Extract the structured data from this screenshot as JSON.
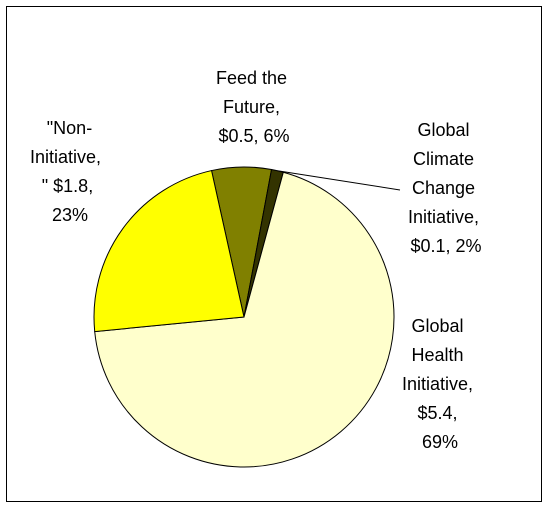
{
  "chart_data": {
    "type": "pie",
    "title": "",
    "slices": [
      {
        "name": "Global Health Initiative",
        "value": 5.4,
        "percent": 69,
        "color": "#FFFFCC",
        "label_lines": [
          "Global",
          "Health",
          "Initiative,",
          "$5.4,",
          "69%"
        ]
      },
      {
        "name": "\"Non-Initiative,\"",
        "value": 1.8,
        "percent": 23,
        "color": "#FFFF00",
        "label_lines": [
          "\"Non-",
          "Initiative,",
          "\"  $1.8,",
          "23%"
        ]
      },
      {
        "name": "Feed the Future",
        "value": 0.5,
        "percent": 6,
        "color": "#808000",
        "label_lines": [
          "Feed the",
          "Future,",
          "$0.5, 6%"
        ]
      },
      {
        "name": "Global Climate Change Initiative",
        "value": 0.1,
        "percent": 2,
        "color": "#333300",
        "label_lines": [
          "Global",
          "Climate",
          "Change",
          "Initiative,",
          "$0.1, 2%"
        ]
      }
    ],
    "legend": false
  }
}
